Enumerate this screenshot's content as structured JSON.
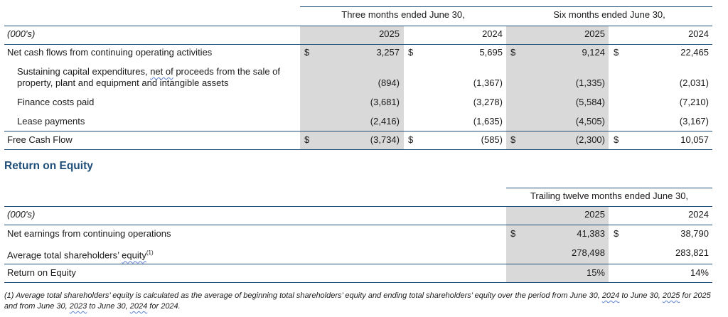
{
  "cash_flow_table": {
    "header_three_months": "Three months ended June 30,",
    "header_six_months": "Six months ended June 30,",
    "units_label": "(000's)",
    "years": [
      "2025",
      "2024",
      "2025",
      "2024"
    ],
    "currency": "$",
    "rows": [
      {
        "label": "Net cash flows from continuing operating activities",
        "values": [
          "3,257",
          "5,695",
          "9,124",
          "22,465"
        ]
      },
      {
        "label_line1": "Sustaining capital expenditures, ",
        "label_squiggle": "net of",
        "label_line1_end": " proceeds from the sale of",
        "label_line2": "property, plant and equipment and intangible assets",
        "values": [
          "(894)",
          "(1,367)",
          "(1,335)",
          "(2,031)"
        ]
      },
      {
        "label": "Finance costs paid",
        "values": [
          "(3,681)",
          "(3,278)",
          "(5,584)",
          "(7,210)"
        ]
      },
      {
        "label": "Lease payments",
        "values": [
          "(2,416)",
          "(1,635)",
          "(4,505)",
          "(3,167)"
        ]
      },
      {
        "label": "Free Cash Flow",
        "values": [
          "(3,734)",
          "(585)",
          "(2,300)",
          "10,057"
        ]
      }
    ]
  },
  "roe_section": {
    "heading": "Return on Equity",
    "header_trailing": "Trailing twelve months ended June 30,",
    "units_label": "(000's)",
    "years": [
      "2025",
      "2024"
    ],
    "currency": "$",
    "rows": [
      {
        "label": "Net earnings from continuing operations",
        "values": [
          "41,383",
          "38,790"
        ]
      },
      {
        "label_prefix": "Average total shareholders’ ",
        "label_squiggle": "equity",
        "label_sup": "(1)",
        "values": [
          "278,498",
          "283,821"
        ]
      },
      {
        "label": "Return on Equity",
        "values": [
          "15%",
          "14%"
        ]
      }
    ]
  },
  "footnote": {
    "part1": "(1) Average total shareholders’ equity is calculated as the average of beginning total shareholders’ equity and ending total shareholders’ equity over the period from June 30, ",
    "sq1": "2024",
    "part2": " to June 30, ",
    "sq2": "2025",
    "part3": " for 2025 and from June 30, ",
    "sq3": "2023",
    "part4": " to June 30, ",
    "sq4": "2024",
    "part5": " for 2024."
  },
  "colors": {
    "shade": "#d9d9d9",
    "rule": "#1f4e79",
    "heading": "#1f4e79"
  }
}
